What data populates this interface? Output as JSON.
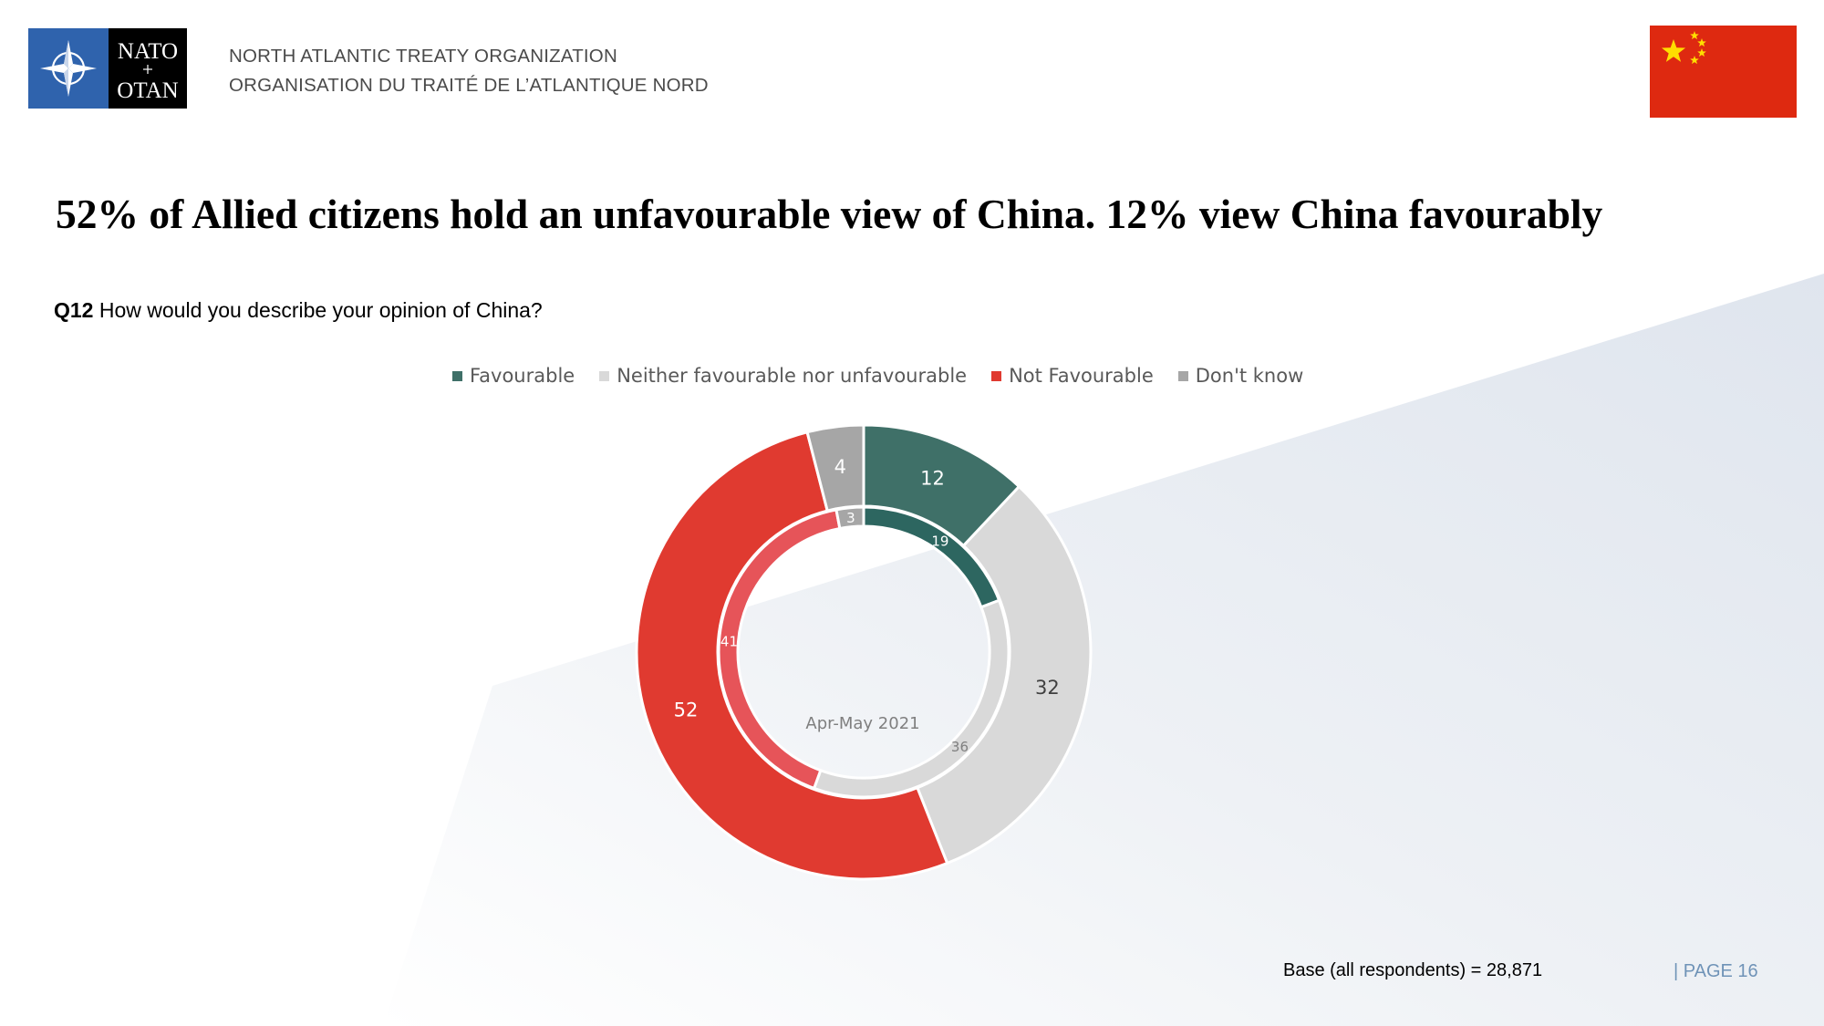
{
  "header": {
    "org_line_en": "NORTH ATLANTIC TREATY ORGANIZATION",
    "org_line_fr": "ORGANISATION DU TRAITÉ DE L’ATLANTIQUE NORD",
    "logo_text_top": "NATO",
    "logo_text_bottom": "OTAN"
  },
  "title": "52% of Allied citizens hold an unfavourable view of China. 12% view China favourably",
  "question": {
    "number": "Q12",
    "text": "How would you describe your opinion of China?"
  },
  "colors": {
    "favourable": "#3f7068",
    "neither": "#d9d9d9",
    "not_favourable": "#e03a30",
    "dont_know": "#a6a6a6",
    "favourable_inner": "#2d6660",
    "neither_inner": "#d9d9d9",
    "not_favourable_inner": "#e65459",
    "dont_know_inner": "#a6a6a6",
    "nato_blue": "#2f63ad",
    "flag_red": "#de2910",
    "flag_yellow": "#ffde00"
  },
  "chart_data": {
    "type": "donut",
    "legend_position": "top",
    "categories": [
      "Favourable",
      "Neither favourable nor unfavourable",
      "Not Favourable",
      "Don't know"
    ],
    "series": [
      {
        "name": "",
        "values": [
          12,
          32,
          52,
          4
        ]
      },
      {
        "name": "Apr-May 2021",
        "values": [
          19,
          36,
          41,
          3
        ]
      }
    ],
    "center_label": "Apr-May 2021"
  },
  "footer": {
    "base_note": "Base (all respondents) = 28,871",
    "page_label": "|  PAGE 16"
  }
}
